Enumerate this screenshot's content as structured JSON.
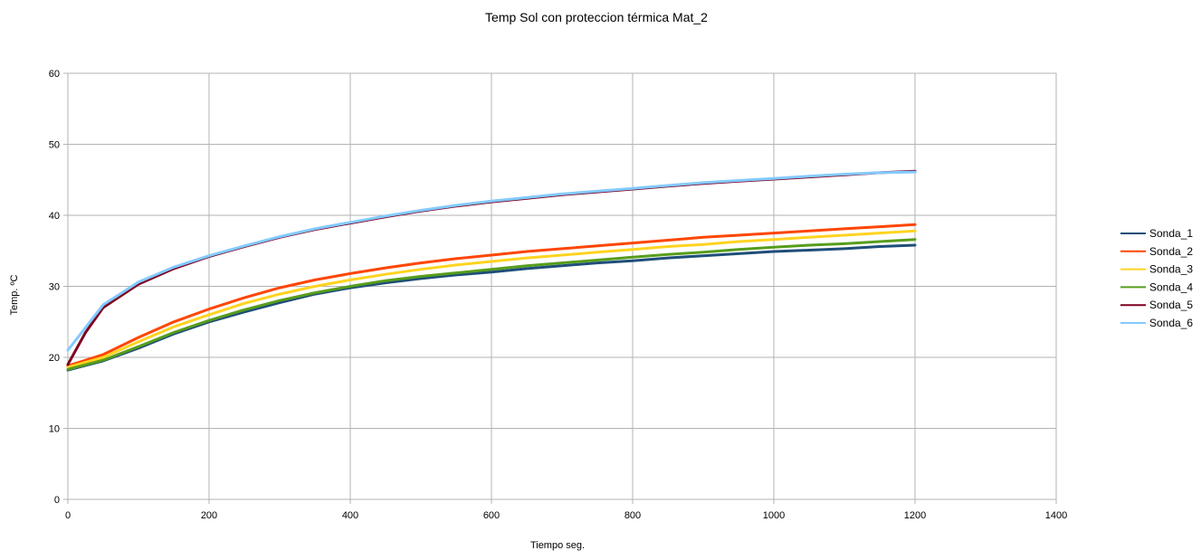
{
  "chart_data": {
    "type": "line",
    "title": "Temp Sol con proteccion térmica Mat_2",
    "xlabel": "Tiempo seg.",
    "ylabel": "Temp. ºC",
    "xlim": [
      0,
      1400
    ],
    "ylim": [
      0,
      60
    ],
    "x_ticks": [
      0,
      200,
      400,
      600,
      800,
      1000,
      1200,
      1400
    ],
    "y_ticks": [
      0,
      10,
      20,
      30,
      40,
      50,
      60
    ],
    "grid": true,
    "legend_position": "right",
    "series": [
      {
        "name": "Sonda_1",
        "color": "#1f4e79",
        "x": [
          0,
          50,
          100,
          150,
          200,
          250,
          300,
          350,
          400,
          450,
          500,
          550,
          600,
          650,
          700,
          750,
          800,
          850,
          900,
          950,
          1000,
          1050,
          1100,
          1150,
          1200
        ],
        "y": [
          18.2,
          19.5,
          21.3,
          23.3,
          25.0,
          26.4,
          27.7,
          28.9,
          29.8,
          30.5,
          31.1,
          31.6,
          32.0,
          32.5,
          32.9,
          33.3,
          33.6,
          34.0,
          34.3,
          34.6,
          34.9,
          35.1,
          35.3,
          35.6,
          35.8
        ]
      },
      {
        "name": "Sonda_2",
        "color": "#ff4500",
        "x": [
          0,
          50,
          100,
          150,
          200,
          250,
          300,
          350,
          400,
          450,
          500,
          550,
          600,
          650,
          700,
          750,
          800,
          850,
          900,
          950,
          1000,
          1050,
          1100,
          1150,
          1200
        ],
        "y": [
          18.8,
          20.4,
          22.8,
          25.0,
          26.8,
          28.4,
          29.8,
          30.9,
          31.8,
          32.6,
          33.3,
          33.9,
          34.4,
          34.9,
          35.3,
          35.7,
          36.1,
          36.5,
          36.9,
          37.2,
          37.5,
          37.8,
          38.1,
          38.4,
          38.7
        ]
      },
      {
        "name": "Sonda_3",
        "color": "#ffd320",
        "x": [
          0,
          50,
          100,
          150,
          200,
          250,
          300,
          350,
          400,
          450,
          500,
          550,
          600,
          650,
          700,
          750,
          800,
          850,
          900,
          950,
          1000,
          1050,
          1100,
          1150,
          1200
        ],
        "y": [
          18.6,
          20.0,
          22.2,
          24.3,
          26.0,
          27.6,
          28.9,
          30.0,
          30.9,
          31.7,
          32.4,
          33.0,
          33.5,
          34.0,
          34.4,
          34.8,
          35.2,
          35.6,
          35.9,
          36.3,
          36.6,
          36.9,
          37.2,
          37.5,
          37.8
        ]
      },
      {
        "name": "Sonda_4",
        "color": "#579d1c",
        "x": [
          0,
          50,
          100,
          150,
          200,
          250,
          300,
          350,
          400,
          450,
          500,
          550,
          600,
          650,
          700,
          750,
          800,
          850,
          900,
          950,
          1000,
          1050,
          1100,
          1150,
          1200
        ],
        "y": [
          18.3,
          19.6,
          21.5,
          23.5,
          25.2,
          26.7,
          28.0,
          29.1,
          30.0,
          30.8,
          31.4,
          31.9,
          32.4,
          32.9,
          33.3,
          33.7,
          34.1,
          34.5,
          34.8,
          35.2,
          35.5,
          35.8,
          36.0,
          36.3,
          36.6
        ]
      },
      {
        "name": "Sonda_5",
        "color": "#7e0021",
        "x": [
          0,
          25,
          50,
          100,
          150,
          200,
          250,
          300,
          350,
          400,
          450,
          500,
          550,
          600,
          650,
          700,
          750,
          800,
          850,
          900,
          950,
          1000,
          1050,
          1100,
          1150,
          1200
        ],
        "y": [
          19.0,
          23.5,
          27.0,
          30.3,
          32.5,
          34.2,
          35.6,
          36.9,
          38.0,
          38.9,
          39.8,
          40.6,
          41.3,
          41.9,
          42.4,
          42.9,
          43.3,
          43.7,
          44.1,
          44.5,
          44.8,
          45.1,
          45.4,
          45.7,
          46.0,
          46.2
        ]
      },
      {
        "name": "Sonda_6",
        "color": "#83caff",
        "x": [
          0,
          25,
          50,
          100,
          150,
          200,
          250,
          300,
          350,
          400,
          450,
          500,
          550,
          600,
          650,
          700,
          750,
          800,
          850,
          900,
          950,
          1000,
          1050,
          1100,
          1150,
          1200
        ],
        "y": [
          21.0,
          24.2,
          27.4,
          30.6,
          32.7,
          34.3,
          35.7,
          37.0,
          38.1,
          39.0,
          39.9,
          40.7,
          41.4,
          42.0,
          42.5,
          43.0,
          43.4,
          43.8,
          44.2,
          44.6,
          44.9,
          45.2,
          45.5,
          45.8,
          46.0,
          46.1
        ]
      }
    ]
  }
}
